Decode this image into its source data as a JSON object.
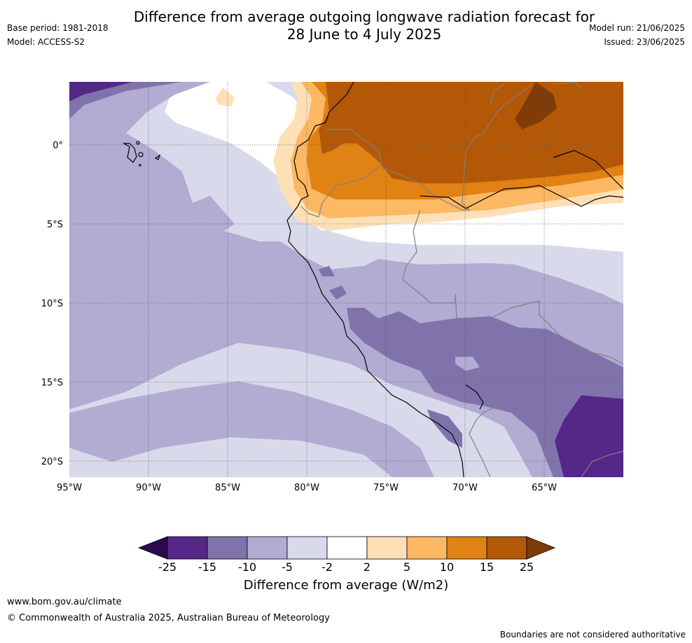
{
  "header": {
    "title_line1": "Difference from average outgoing longwave radiation forecast for",
    "title_line2": "28 June to 4 July 2025",
    "base_period": "Base period: 1981-2018",
    "model": "Model: ACCESS-S2",
    "model_run": "Model run: 21/06/2025",
    "issued": "Issued: 23/06/2025"
  },
  "map": {
    "lat_labels": [
      "0°",
      "5°S",
      "10°S",
      "15°S",
      "20°S"
    ],
    "lon_labels": [
      "95°W",
      "90°W",
      "85°W",
      "80°W",
      "75°W",
      "70°W",
      "65°W"
    ],
    "extent": {
      "lon_min": -95,
      "lon_max": -60,
      "lat_min": -21,
      "lat_max": 4
    }
  },
  "colorbar": {
    "ticks": [
      "-25",
      "-15",
      "-10",
      "-5",
      "-2",
      "2",
      "5",
      "10",
      "15",
      "25"
    ],
    "colors": [
      "#2d0a4e",
      "#542788",
      "#8073ac",
      "#b2abd2",
      "#d8daeb",
      "#ffffff",
      "#fee0b6",
      "#fdb863",
      "#e08214",
      "#b35806",
      "#7f3b08"
    ],
    "label": "Difference from average (W/m2)"
  },
  "footer": {
    "url": "www.bom.gov.au/climate",
    "copyright": "© Commonwealth of Australia 2025, Australian Bureau of Meteorology",
    "disclaimer": "Boundaries are not considered authoritative"
  }
}
